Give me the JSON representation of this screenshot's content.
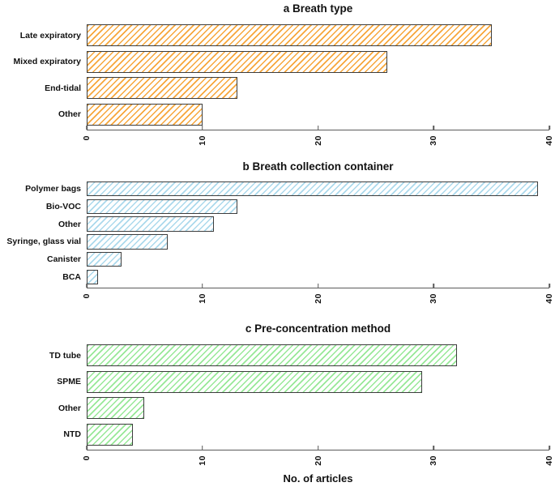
{
  "figure": {
    "xlabel": "No. of articles",
    "axis_max": 40,
    "axis_tick_labels": [
      "0",
      "10",
      "20",
      "30",
      "40"
    ],
    "axis_color": "#5a5a5a",
    "bar_border_color": "#3d3d3d",
    "text_color": "#111111",
    "background_color": "#ffffff"
  },
  "chart_data": [
    {
      "type": "bar",
      "orientation": "horizontal",
      "title": "a Breath type",
      "categories": [
        "Late expiratory",
        "Mixed expiratory",
        "End-tidal",
        "Other"
      ],
      "values": [
        35,
        26,
        13,
        10
      ],
      "bar_color": "#F7A63A",
      "hatch": "diagonal",
      "xlim": [
        0,
        40
      ],
      "grid": false,
      "legend": false
    },
    {
      "type": "bar",
      "orientation": "horizontal",
      "title": "b Breath collection container",
      "categories": [
        "Polymer bags",
        "Bio-VOC",
        "Other",
        "Syringe, glass vial",
        "Canister",
        "BCA"
      ],
      "values": [
        39,
        13,
        11,
        7,
        3,
        1
      ],
      "bar_color": "#ABD9EC",
      "hatch": "diagonal",
      "xlim": [
        0,
        40
      ],
      "grid": false,
      "legend": false
    },
    {
      "type": "bar",
      "orientation": "horizontal",
      "title": "c Pre-concentration method",
      "categories": [
        "TD tube",
        "SPME",
        "Other",
        "NTD"
      ],
      "values": [
        32,
        29,
        5,
        4
      ],
      "bar_color": "#97E897",
      "hatch": "diagonal",
      "xlim": [
        0,
        40
      ],
      "grid": false,
      "legend": false
    }
  ]
}
